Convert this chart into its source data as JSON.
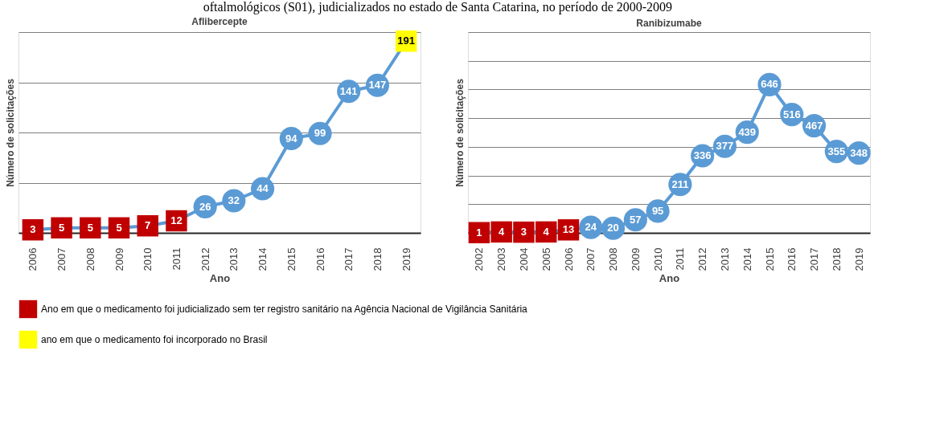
{
  "chart_data": [
    {
      "type": "line",
      "title": "Aflibercepte",
      "xlabel": "Ano",
      "ylabel": "Número de solicitações",
      "annotations": [
        "oftalmológicos (S01),  judicializados no estado de Santa Catarina, no período de 2000-2009"
      ],
      "categories": [
        "2006",
        "2007",
        "2008",
        "2009",
        "2010",
        "2011",
        "2012",
        "2013",
        "2014",
        "2015",
        "2016",
        "2017",
        "2018",
        "2019"
      ],
      "ylim": [
        0,
        200
      ],
      "yticks": [
        {
          "value": 0,
          "label": null
        },
        {
          "value": 50,
          "label": null
        },
        {
          "value": 100,
          "label": null
        },
        {
          "value": 150,
          "label": null
        },
        {
          "value": 200,
          "label": null
        }
      ],
      "grid": "y",
      "tick_labels": "x",
      "data_labels": true,
      "legend": "bottom",
      "marker": "circle",
      "line_style": "solid",
      "series": [
        {
          "type": "line",
          "color": "#5b9bd5",
          "values": [
            3,
            5,
            5,
            5,
            7,
            12,
            26,
            32,
            44,
            94,
            99,
            141,
            147,
            191
          ],
          "value_labels": [
            null,
            null,
            null,
            null,
            null,
            null,
            "26",
            "32",
            "44",
            "94",
            "99",
            "141",
            "147",
            null
          ]
        },
        {
          "type": "scatter",
          "marker": "square",
          "name": "Ano em que o medicamento foi judicializado sem ter registro sanitário na Agência Nacional de Vigilância Sanitária",
          "color": "#c00000",
          "values": [
            3,
            5,
            5,
            5,
            7,
            12,
            null,
            null,
            null,
            null,
            null,
            null,
            null,
            null
          ]
        },
        {
          "type": "scatter",
          "marker": "square",
          "name": "ano em que o medicamento foi incorporado no Brasil",
          "color": "#ffff00",
          "values": [
            null,
            null,
            null,
            null,
            null,
            null,
            null,
            null,
            null,
            null,
            null,
            null,
            null,
            191
          ]
        }
      ]
    },
    {
      "type": "line",
      "title": "Ranibizumabe",
      "xlabel": "Ano",
      "ylabel": "Número de solicitações",
      "categories": [
        "2002",
        "2003",
        "2004",
        "2005",
        "2006",
        "2007",
        "2008",
        "2009",
        "2010",
        "2011",
        "2012",
        "2013",
        "2014",
        "2015",
        "2016",
        "2017",
        "2018",
        "2019"
      ],
      "ylim": [
        0,
        875
      ],
      "yticks": [
        {
          "value": 0,
          "label": null
        },
        {
          "value": 125,
          "label": null
        },
        {
          "value": 250,
          "label": null
        },
        {
          "value": 375,
          "label": null
        },
        {
          "value": 500,
          "label": null
        },
        {
          "value": 625,
          "label": null
        },
        {
          "value": 750,
          "label": null
        },
        {
          "value": 875,
          "label": null
        }
      ],
      "grid": "y",
      "tick_labels": "x",
      "data_labels": true,
      "legend": "bottom",
      "marker": "circle",
      "line_style": "solid",
      "series": [
        {
          "type": "line",
          "color": "#5b9bd5",
          "values": [
            1,
            4,
            3,
            4,
            13,
            24,
            20,
            57,
            95,
            211,
            336,
            377,
            439,
            646,
            516,
            467,
            355,
            348
          ],
          "value_labels": [
            null,
            null,
            null,
            null,
            null,
            "24",
            "20",
            "57",
            "95",
            "211",
            "336",
            "377",
            "439",
            "646",
            "516",
            "467",
            "355",
            "348"
          ]
        },
        {
          "type": "scatter",
          "marker": "square",
          "name": "Ano em que o medicamento foi judicializado sem ter registro sanitário na Agência Nacional de Vigilância Sanitária",
          "color": "#c00000",
          "values": [
            1,
            4,
            3,
            4,
            13,
            null,
            null,
            null,
            null,
            null,
            null,
            null,
            null,
            null,
            null,
            null,
            null,
            null
          ]
        }
      ]
    }
  ]
}
